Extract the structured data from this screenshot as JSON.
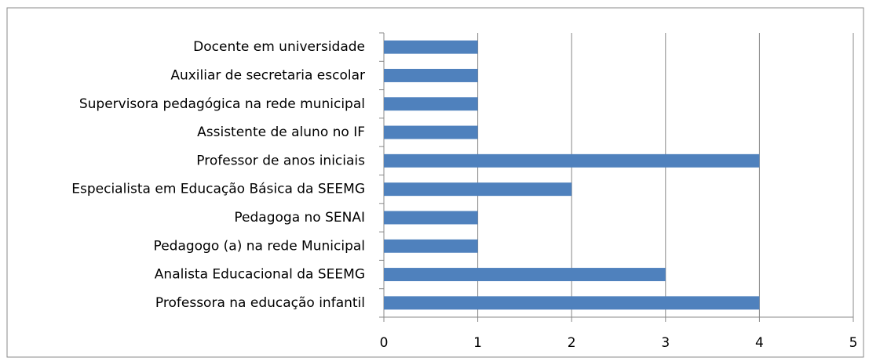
{
  "chart_data": {
    "type": "bar",
    "orientation": "horizontal",
    "categories": [
      "Docente em universidade",
      "Auxiliar de secretaria escolar",
      "Supervisora pedagógica na rede municipal",
      "Assistente de aluno no IF",
      "Professor de anos iniciais",
      "Especialista em Educação Básica da SEEMG",
      "Pedagoga no SENAI",
      "Pedagogo (a) na rede Municipal",
      "Analista Educacional da SEEMG",
      "Professora na educação infantil"
    ],
    "values": [
      1,
      1,
      1,
      1,
      4,
      2,
      1,
      1,
      3,
      4
    ],
    "color": "#4f81bd",
    "xlim": [
      0,
      5
    ],
    "xticks": [
      0,
      1,
      2,
      3,
      4,
      5
    ],
    "grid": true
  }
}
